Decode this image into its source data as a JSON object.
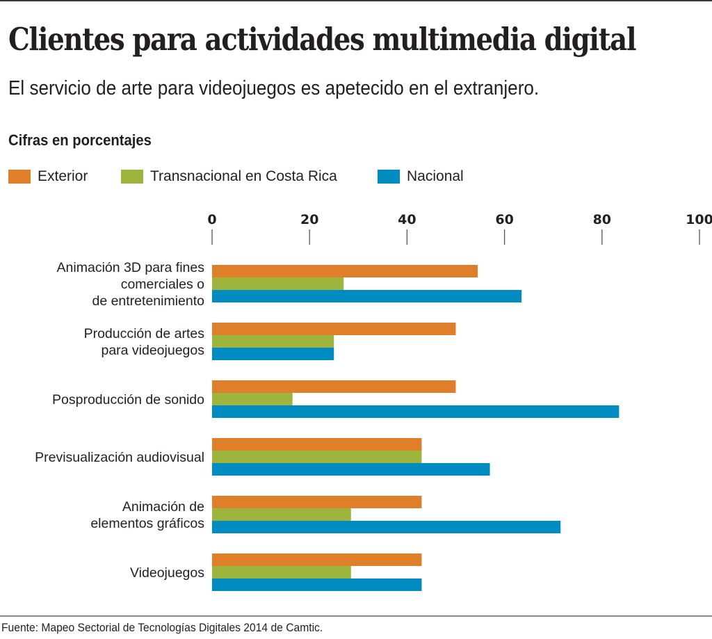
{
  "header": {
    "title": "Clientes para actividades multimedia digital",
    "subtitle": "El servicio de arte para videojuegos es apetecido en el extranjero.",
    "units": "Cifras en porcentajes"
  },
  "footer": {
    "source": "Fuente: Mapeo Sectorial de Tecnologías Digitales 2014 de Camtic."
  },
  "colors": {
    "exterior": "#e07f2a",
    "transnacional": "#9db53d",
    "nacional": "#008cc1",
    "text": "#231f20",
    "axis": "#555555"
  },
  "chart_data": {
    "type": "bar",
    "orientation": "horizontal",
    "title": "Clientes para actividades multimedia digital",
    "subtitle": "El servicio de arte para videojuegos es apetecido en el extranjero.",
    "xlabel": "Cifras en porcentajes",
    "ylabel": "",
    "xlim": [
      0,
      100
    ],
    "xticks": [
      0,
      20,
      40,
      60,
      80,
      100
    ],
    "xtick_labels": [
      "0",
      "20",
      "40",
      "60",
      "80",
      "100"
    ],
    "axis_position": "top",
    "grid": false,
    "legend_placement": "top-left",
    "categories": [
      [
        "Animación 3D para fines",
        "comerciales o",
        "de entretenimiento"
      ],
      [
        "Producción de artes",
        "para videojuegos"
      ],
      [
        "Posproducción de sonido"
      ],
      [
        "Previsualización audiovisual"
      ],
      [
        "Animación de",
        "elementos gráficos"
      ],
      [
        "Videojuegos"
      ]
    ],
    "series": [
      {
        "name": "Exterior",
        "color": "#e07f2a",
        "values": [
          54.5,
          50,
          50,
          43,
          43,
          43
        ]
      },
      {
        "name": "Transnacional en Costa Rica",
        "color": "#9db53d",
        "values": [
          27,
          25,
          16.5,
          43,
          28.5,
          28.5
        ]
      },
      {
        "name": "Nacional",
        "color": "#008cc1",
        "values": [
          63.5,
          25,
          83.5,
          57,
          71.5,
          43
        ]
      }
    ]
  }
}
